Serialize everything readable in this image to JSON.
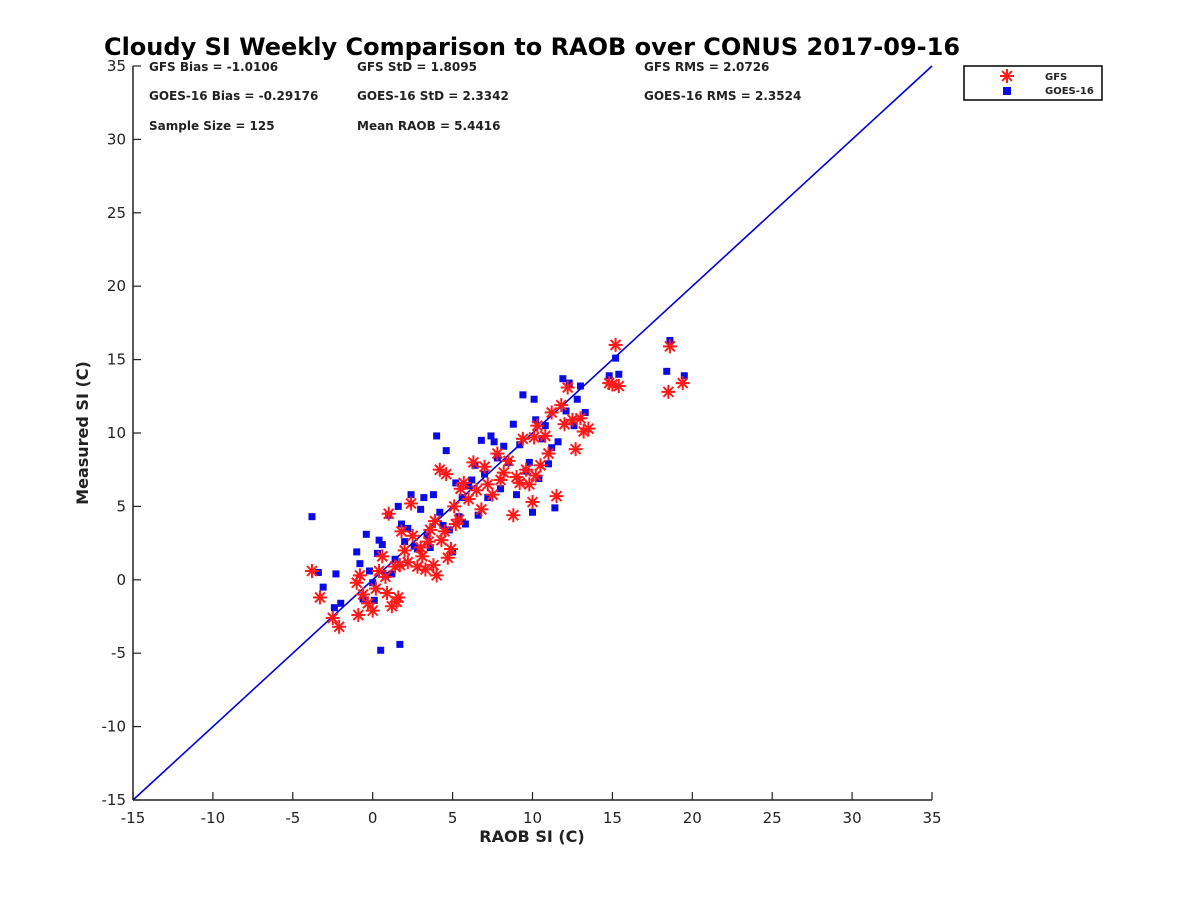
{
  "chart_data": {
    "type": "scatter",
    "title": "Cloudy SI Weekly Comparison to RAOB over CONUS 2017-09-16",
    "xlabel": "RAOB SI (C)",
    "ylabel": "Measured SI (C)",
    "xlim": [
      -15,
      35
    ],
    "ylim": [
      -15,
      35
    ],
    "xticks": [
      "-15",
      "-10",
      "-5",
      "0",
      "5",
      "10",
      "15",
      "20",
      "25",
      "30",
      "35"
    ],
    "yticks": [
      "-15",
      "-10",
      "-5",
      "0",
      "5",
      "10",
      "15",
      "20",
      "25",
      "30",
      "35"
    ],
    "grid": false,
    "legend_position": "outside-top-right",
    "reference_line": {
      "x": [
        -15,
        35
      ],
      "y": [
        -15,
        35
      ],
      "color": "#0000dd"
    },
    "stats": [
      "GFS Bias = -1.0106",
      "GFS StD = 1.8095",
      "GFS RMS = 2.0726",
      "GOES-16 Bias = -0.29176",
      "GOES-16 StD = 2.3342",
      "GOES-16 RMS = 2.3524",
      "Sample Size = 125",
      "Mean RAOB = 5.4416"
    ],
    "series": [
      {
        "name": "GFS",
        "marker": "asterisk",
        "color": "#ff1a1a",
        "points": [
          [
            -3.8,
            0.6
          ],
          [
            -3.3,
            -1.2
          ],
          [
            -2.5,
            -2.6
          ],
          [
            -2.1,
            -3.2
          ],
          [
            -1.0,
            -0.2
          ],
          [
            -0.8,
            0.3
          ],
          [
            -0.6,
            -1.0
          ],
          [
            -0.9,
            -2.4
          ],
          [
            -0.3,
            -1.6
          ],
          [
            0.0,
            -2.1
          ],
          [
            0.2,
            -0.6
          ],
          [
            0.4,
            0.6
          ],
          [
            0.6,
            1.6
          ],
          [
            0.8,
            0.2
          ],
          [
            0.9,
            -0.9
          ],
          [
            1.0,
            4.5
          ],
          [
            1.2,
            -1.8
          ],
          [
            1.4,
            0.9
          ],
          [
            1.5,
            -1.5
          ],
          [
            1.6,
            -1.2
          ],
          [
            1.7,
            1.0
          ],
          [
            1.8,
            3.3
          ],
          [
            2.0,
            2.0
          ],
          [
            2.2,
            1.2
          ],
          [
            2.4,
            5.2
          ],
          [
            2.5,
            3.0
          ],
          [
            2.8,
            0.9
          ],
          [
            3.0,
            2.2
          ],
          [
            3.1,
            1.6
          ],
          [
            3.3,
            0.7
          ],
          [
            3.5,
            2.6
          ],
          [
            3.6,
            3.4
          ],
          [
            3.8,
            1.0
          ],
          [
            3.9,
            4.0
          ],
          [
            4.0,
            0.3
          ],
          [
            4.2,
            7.5
          ],
          [
            4.3,
            2.7
          ],
          [
            4.5,
            3.3
          ],
          [
            4.6,
            7.2
          ],
          [
            4.7,
            1.5
          ],
          [
            4.9,
            2.1
          ],
          [
            5.1,
            5.0
          ],
          [
            5.2,
            3.8
          ],
          [
            5.4,
            4.1
          ],
          [
            5.5,
            6.2
          ],
          [
            5.7,
            6.6
          ],
          [
            6.0,
            5.5
          ],
          [
            6.3,
            8.0
          ],
          [
            6.5,
            6.1
          ],
          [
            6.8,
            4.8
          ],
          [
            7.0,
            7.7
          ],
          [
            7.2,
            6.5
          ],
          [
            7.5,
            5.8
          ],
          [
            7.8,
            8.6
          ],
          [
            8.0,
            6.8
          ],
          [
            8.2,
            7.3
          ],
          [
            8.5,
            8.1
          ],
          [
            8.8,
            4.4
          ],
          [
            9.0,
            7.0
          ],
          [
            9.2,
            6.6
          ],
          [
            9.4,
            9.6
          ],
          [
            9.6,
            7.5
          ],
          [
            9.8,
            6.5
          ],
          [
            10.0,
            5.3
          ],
          [
            10.1,
            9.7
          ],
          [
            10.2,
            7.1
          ],
          [
            10.3,
            10.5
          ],
          [
            10.5,
            7.8
          ],
          [
            10.8,
            9.8
          ],
          [
            11.0,
            8.6
          ],
          [
            11.2,
            11.4
          ],
          [
            11.5,
            5.7
          ],
          [
            11.8,
            11.9
          ],
          [
            12.0,
            10.6
          ],
          [
            12.2,
            13.1
          ],
          [
            12.5,
            10.9
          ],
          [
            12.7,
            8.9
          ],
          [
            13.0,
            11.0
          ],
          [
            13.2,
            10.1
          ],
          [
            13.5,
            10.3
          ],
          [
            14.8,
            13.4
          ],
          [
            15.0,
            13.3
          ],
          [
            15.2,
            16.0
          ],
          [
            15.4,
            13.2
          ],
          [
            18.5,
            12.8
          ],
          [
            18.6,
            15.9
          ],
          [
            19.4,
            13.4
          ]
        ]
      },
      {
        "name": "GOES-16",
        "marker": "square",
        "color": "#0a0ae6",
        "points": [
          [
            -3.8,
            4.3
          ],
          [
            -3.4,
            0.5
          ],
          [
            -3.1,
            -0.5
          ],
          [
            -2.4,
            -1.9
          ],
          [
            -2.3,
            0.4
          ],
          [
            -2.0,
            -1.6
          ],
          [
            -1.0,
            1.9
          ],
          [
            -0.8,
            1.1
          ],
          [
            -0.6,
            -1.3
          ],
          [
            -0.4,
            3.1
          ],
          [
            -0.2,
            0.6
          ],
          [
            0.0,
            -0.2
          ],
          [
            0.1,
            -1.4
          ],
          [
            0.3,
            1.8
          ],
          [
            0.4,
            2.7
          ],
          [
            0.5,
            -4.8
          ],
          [
            0.6,
            2.4
          ],
          [
            0.8,
            0.3
          ],
          [
            1.0,
            4.4
          ],
          [
            1.2,
            0.4
          ],
          [
            1.4,
            1.4
          ],
          [
            1.6,
            5.0
          ],
          [
            1.7,
            -4.4
          ],
          [
            1.8,
            3.8
          ],
          [
            2.0,
            2.6
          ],
          [
            2.2,
            3.5
          ],
          [
            2.4,
            5.8
          ],
          [
            2.6,
            2.3
          ],
          [
            2.8,
            2.1
          ],
          [
            3.0,
            4.8
          ],
          [
            3.2,
            5.6
          ],
          [
            3.4,
            3.0
          ],
          [
            3.6,
            2.2
          ],
          [
            3.8,
            5.8
          ],
          [
            4.0,
            9.8
          ],
          [
            4.2,
            4.6
          ],
          [
            4.4,
            3.7
          ],
          [
            4.6,
            8.8
          ],
          [
            4.8,
            3.4
          ],
          [
            5.0,
            1.9
          ],
          [
            5.2,
            6.6
          ],
          [
            5.4,
            4.3
          ],
          [
            5.6,
            5.6
          ],
          [
            5.8,
            3.8
          ],
          [
            6.0,
            6.4
          ],
          [
            6.2,
            6.8
          ],
          [
            6.4,
            7.8
          ],
          [
            6.6,
            4.4
          ],
          [
            6.8,
            9.5
          ],
          [
            7.0,
            7.2
          ],
          [
            7.2,
            5.6
          ],
          [
            7.4,
            9.8
          ],
          [
            7.6,
            9.4
          ],
          [
            7.8,
            8.3
          ],
          [
            8.0,
            6.2
          ],
          [
            8.2,
            9.1
          ],
          [
            8.5,
            8.0
          ],
          [
            8.8,
            10.6
          ],
          [
            9.0,
            5.8
          ],
          [
            9.2,
            9.2
          ],
          [
            9.4,
            12.6
          ],
          [
            9.6,
            7.4
          ],
          [
            9.8,
            8.0
          ],
          [
            10.0,
            4.6
          ],
          [
            10.1,
            12.3
          ],
          [
            10.2,
            10.9
          ],
          [
            10.4,
            6.9
          ],
          [
            10.6,
            9.6
          ],
          [
            10.8,
            10.5
          ],
          [
            11.0,
            7.9
          ],
          [
            11.2,
            9.0
          ],
          [
            11.4,
            4.9
          ],
          [
            11.6,
            9.4
          ],
          [
            11.9,
            13.7
          ],
          [
            12.1,
            11.5
          ],
          [
            12.3,
            13.4
          ],
          [
            12.6,
            10.5
          ],
          [
            12.8,
            12.3
          ],
          [
            13.0,
            13.2
          ],
          [
            13.3,
            11.4
          ],
          [
            14.8,
            13.9
          ],
          [
            15.2,
            15.1
          ],
          [
            15.4,
            14.0
          ],
          [
            18.4,
            14.2
          ],
          [
            18.6,
            16.3
          ],
          [
            19.5,
            13.9
          ]
        ]
      }
    ]
  }
}
